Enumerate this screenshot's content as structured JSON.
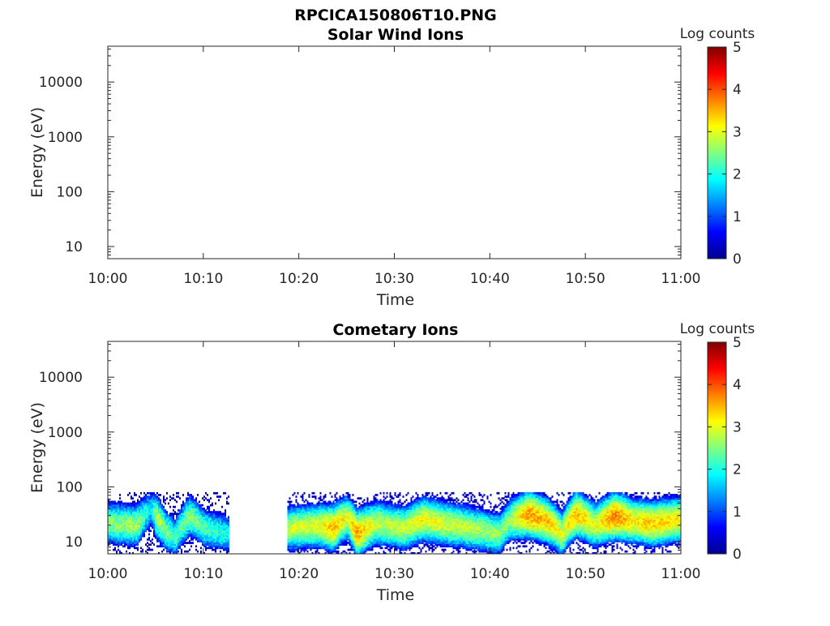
{
  "figure": {
    "title": "RPCICA150806T10.PNG"
  },
  "colors": {
    "colormap": [
      "#00008f",
      "#0000ff",
      "#0080ff",
      "#00ffff",
      "#80ff80",
      "#ffff00",
      "#ff8000",
      "#ff0000",
      "#800000"
    ],
    "axis": "#262626"
  },
  "chart_data": [
    {
      "type": "heatmap",
      "title": "Solar Wind Ions",
      "xlabel": "Time",
      "ylabel": "Energy (eV)",
      "x_ticks": [
        "10:00",
        "10:10",
        "10:20",
        "10:30",
        "10:40",
        "10:50",
        "11:00"
      ],
      "xlim": [
        "10:00",
        "11:00"
      ],
      "y_ticks": [
        "10",
        "100",
        "1000",
        "10000"
      ],
      "y_tick_values": [
        10,
        100,
        1000,
        10000
      ],
      "ylim": [
        6,
        45000
      ],
      "yscale": "log",
      "colorbar": {
        "label": "Log counts",
        "min": 0,
        "max": 5,
        "ticks": [
          "0",
          "1",
          "2",
          "3",
          "4",
          "5"
        ]
      },
      "data_segments": []
    },
    {
      "type": "heatmap",
      "title": "Cometary Ions",
      "xlabel": "Time",
      "ylabel": "Energy (eV)",
      "x_ticks": [
        "10:00",
        "10:10",
        "10:20",
        "10:30",
        "10:40",
        "10:50",
        "11:00"
      ],
      "xlim": [
        "10:00",
        "11:00"
      ],
      "y_ticks": [
        "10",
        "100",
        "1000",
        "10000"
      ],
      "y_tick_values": [
        10,
        100,
        1000,
        10000
      ],
      "ylim": [
        6,
        45000
      ],
      "yscale": "log",
      "colorbar": {
        "label": "Log counts",
        "min": 0,
        "max": 5,
        "ticks": [
          "0",
          "1",
          "2",
          "3",
          "4",
          "5"
        ]
      },
      "data_segments": [
        {
          "start": "10:00",
          "end": "10:12.7",
          "energy_range_eV": [
            6,
            80
          ]
        },
        {
          "start": "10:18.8",
          "end": "11:00",
          "energy_range_eV": [
            6,
            80
          ]
        }
      ],
      "peak_energy_eV": [
        {
          "time_min": 0,
          "eV": 22,
          "log_counts": 2.6
        },
        {
          "time_min": 3,
          "eV": 20,
          "log_counts": 2.7
        },
        {
          "time_min": 4.5,
          "eV": 40,
          "log_counts": 1.8
        },
        {
          "time_min": 5,
          "eV": 28,
          "log_counts": 2.9
        },
        {
          "time_min": 6,
          "eV": 16,
          "log_counts": 2.5
        },
        {
          "time_min": 7,
          "eV": 12,
          "log_counts": 2.2
        },
        {
          "time_min": 8.5,
          "eV": 30,
          "log_counts": 2.6
        },
        {
          "time_min": 10,
          "eV": 18,
          "log_counts": 2.3
        },
        {
          "time_min": 12.5,
          "eV": 14,
          "log_counts": 2.0
        },
        {
          "time_min": 19,
          "eV": 18,
          "log_counts": 2.9
        },
        {
          "time_min": 22,
          "eV": 20,
          "log_counts": 3.0
        },
        {
          "time_min": 23.5,
          "eV": 18,
          "log_counts": 3.5
        },
        {
          "time_min": 25,
          "eV": 28,
          "log_counts": 3.0
        },
        {
          "time_min": 26,
          "eV": 14,
          "log_counts": 3.6
        },
        {
          "time_min": 28,
          "eV": 22,
          "log_counts": 2.9
        },
        {
          "time_min": 31,
          "eV": 18,
          "log_counts": 2.9
        },
        {
          "time_min": 33,
          "eV": 26,
          "log_counts": 3.1
        },
        {
          "time_min": 35,
          "eV": 22,
          "log_counts": 3.0
        },
        {
          "time_min": 38,
          "eV": 18,
          "log_counts": 2.8
        },
        {
          "time_min": 41,
          "eV": 14,
          "log_counts": 2.6
        },
        {
          "time_min": 42,
          "eV": 25,
          "log_counts": 2.7
        },
        {
          "time_min": 44,
          "eV": 32,
          "log_counts": 3.7
        },
        {
          "time_min": 46,
          "eV": 24,
          "log_counts": 3.4
        },
        {
          "time_min": 47.5,
          "eV": 14,
          "log_counts": 3.0
        },
        {
          "time_min": 49,
          "eV": 32,
          "log_counts": 3.5
        },
        {
          "time_min": 51,
          "eV": 20,
          "log_counts": 3.0
        },
        {
          "time_min": 53,
          "eV": 30,
          "log_counts": 3.8
        },
        {
          "time_min": 55,
          "eV": 24,
          "log_counts": 3.2
        },
        {
          "time_min": 57,
          "eV": 22,
          "log_counts": 3.4
        },
        {
          "time_min": 60,
          "eV": 26,
          "log_counts": 3.2
        }
      ]
    }
  ]
}
